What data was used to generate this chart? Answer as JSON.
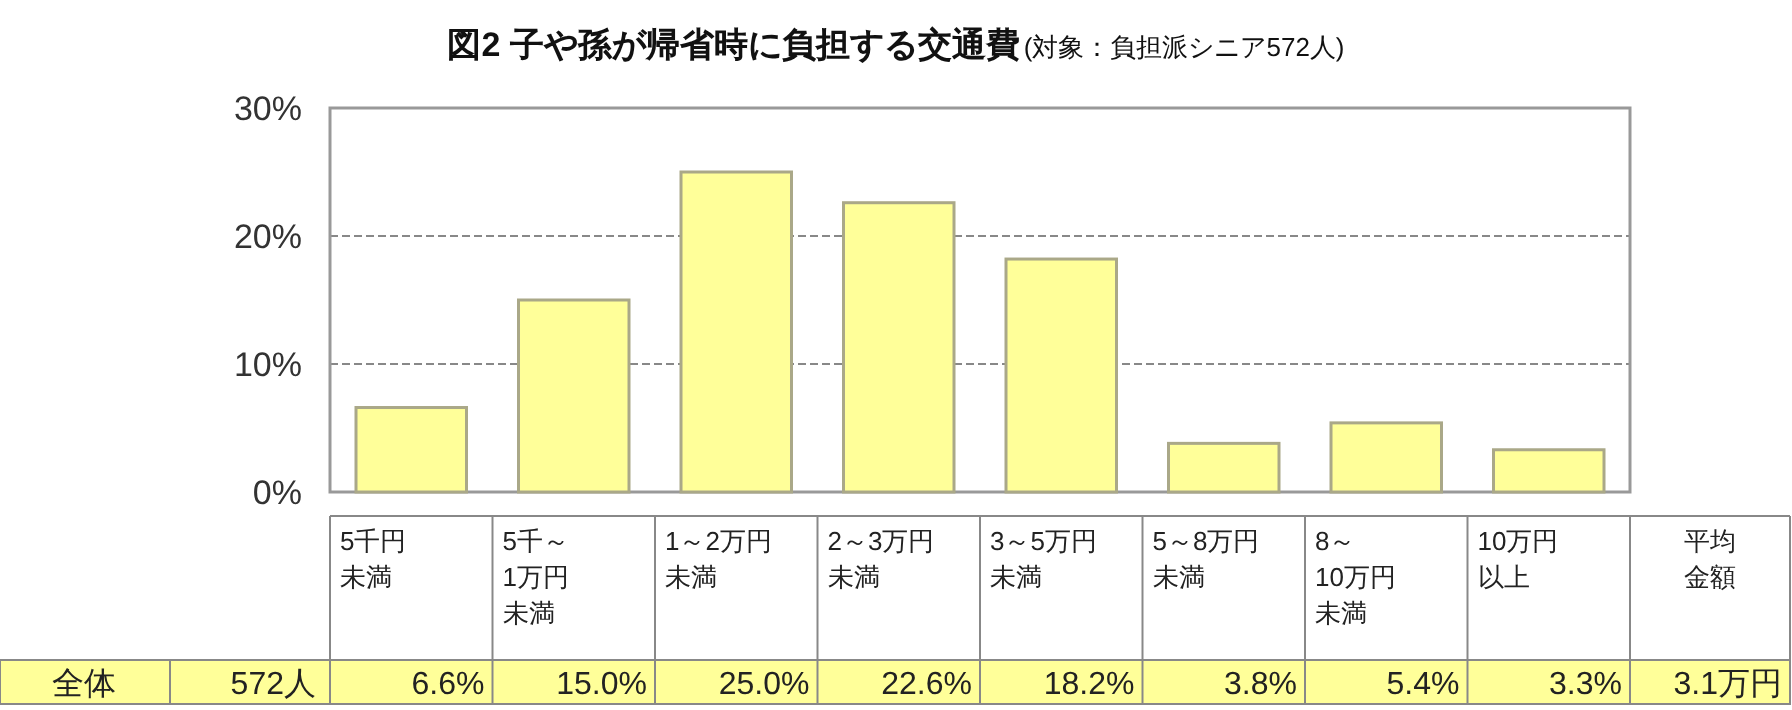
{
  "chart_data": {
    "type": "bar",
    "title": "図2 子や孫が帰省時に負担する交通費",
    "subtitle": "(対象：負担派シニア572人)",
    "categories": [
      "5千円未満",
      "5千～1万円未満",
      "1～2万円未満",
      "2～3万円未満",
      "3～5万円未満",
      "5～8万円未満",
      "8～10万円未満",
      "10万円以上"
    ],
    "values": [
      6.6,
      15.0,
      25.0,
      22.6,
      18.2,
      3.8,
      5.4,
      3.3
    ],
    "value_labels": [
      "6.6%",
      "15.0%",
      "25.0%",
      "22.6%",
      "18.2%",
      "3.8%",
      "5.4%",
      "3.3%"
    ],
    "color": "#ffff99",
    "ylim": [
      0,
      30
    ],
    "yticks": [
      {
        "value": 0,
        "label": "0%"
      },
      {
        "value": 10,
        "label": "10%"
      },
      {
        "value": 20,
        "label": "20%"
      },
      {
        "value": 30,
        "label": "30%"
      }
    ],
    "grid": "y",
    "annotations": [
      "全体",
      "572人",
      "平均金額",
      "3.1万円"
    ]
  }
}
